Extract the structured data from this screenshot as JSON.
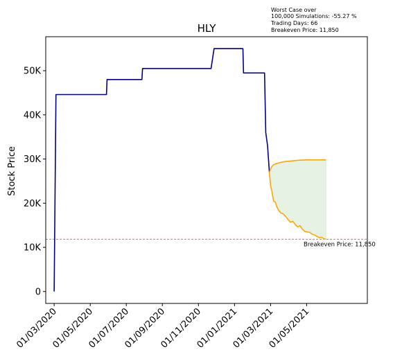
{
  "chart_data": {
    "type": "line",
    "title": "HLY",
    "xlabel": "",
    "ylabel": "Stock Price",
    "annotation_lines": [
      "Worst Case over",
      "100,000 Simulations: -55.27 %",
      "Trading Days: 66",
      "Breakeven Price: 11,850"
    ],
    "breakeven": {
      "value": 11850,
      "label": "Breakeven Price: 11,850"
    },
    "ylim": [
      -2700,
      57700
    ],
    "y_ticks": [
      {
        "value": 0,
        "label": "0"
      },
      {
        "value": 10000,
        "label": "10K"
      },
      {
        "value": 20000,
        "label": "20K"
      },
      {
        "value": 30000,
        "label": "30K"
      },
      {
        "value": 40000,
        "label": "40K"
      },
      {
        "value": 50000,
        "label": "50K"
      }
    ],
    "xlim": [
      "2019-12-20",
      "2021-06-07"
    ],
    "x_ticks": [
      {
        "value": "2020-01-03",
        "label": "01/03/2020"
      },
      {
        "value": "2020-03-03",
        "label": "01/05/2020"
      },
      {
        "value": "2020-05-02",
        "label": "01/07/2020"
      },
      {
        "value": "2020-07-01",
        "label": "01/09/2020"
      },
      {
        "value": "2020-08-30",
        "label": "01/11/2020"
      },
      {
        "value": "2020-10-29",
        "label": "01/01/2021"
      },
      {
        "value": "2020-12-28",
        "label": "01/03/2021"
      },
      {
        "value": "2021-02-26",
        "label": "01/05/2021"
      }
    ],
    "historical": {
      "color": "#00008b",
      "x": [
        "2020-01-03",
        "2020-01-06",
        "2020-03-30",
        "2020-03-31",
        "2020-05-28",
        "2020-05-29",
        "2020-09-20",
        "2020-09-25",
        "2020-11-12",
        "2020-11-13",
        "2020-12-18",
        "2020-12-20",
        "2020-12-23",
        "2020-12-26"
      ],
      "y": [
        0,
        44600,
        44600,
        48000,
        48000,
        50500,
        50500,
        55000,
        55000,
        49500,
        49500,
        36000,
        33000,
        27000
      ]
    },
    "simulation": {
      "color": "#ffa500",
      "fill_color": "#d7ebd5",
      "x": [
        "2020-12-26",
        "2020-12-28",
        "2020-12-30",
        "2021-01-02",
        "2021-01-05",
        "2021-01-08",
        "2021-01-10",
        "2021-01-14",
        "2021-01-18",
        "2021-01-22",
        "2021-01-26",
        "2021-01-30",
        "2021-02-03",
        "2021-02-07",
        "2021-02-11",
        "2021-02-15",
        "2021-02-19",
        "2021-02-23",
        "2021-02-27",
        "2021-03-03",
        "2021-03-07",
        "2021-03-11",
        "2021-03-15",
        "2021-03-19",
        "2021-03-23",
        "2021-03-27",
        "2021-03-30"
      ],
      "upper": [
        27000,
        27800,
        28300,
        28700,
        28900,
        29000,
        29100,
        29250,
        29350,
        29450,
        29500,
        29550,
        29600,
        29650,
        29700,
        29750,
        29750,
        29800,
        29800,
        29800,
        29800,
        29800,
        29800,
        29800,
        29800,
        29800,
        29800
      ],
      "lower": [
        27000,
        24000,
        22800,
        20500,
        20200,
        19000,
        18500,
        17800,
        17600,
        17000,
        16300,
        15700,
        15900,
        15200,
        14600,
        14900,
        14100,
        13600,
        13500,
        13400,
        13000,
        12800,
        12500,
        12200,
        12300,
        11900,
        11850
      ]
    }
  }
}
